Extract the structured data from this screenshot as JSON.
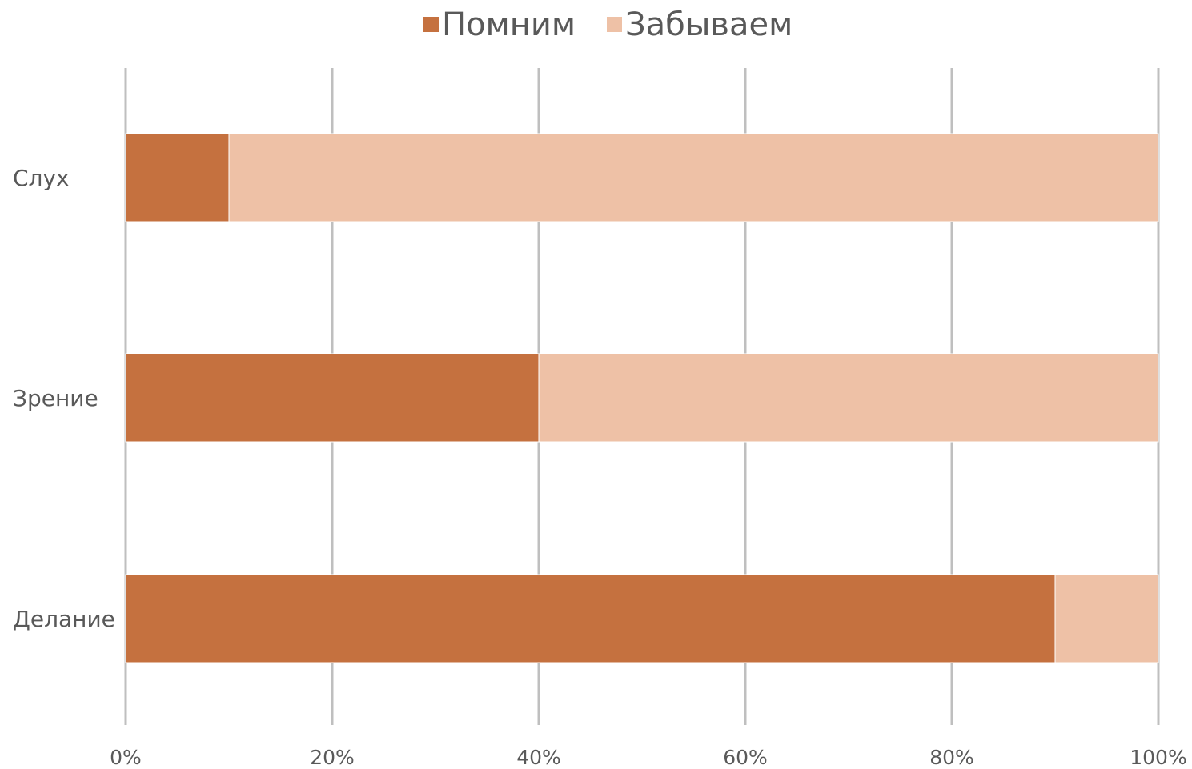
{
  "chart_data": {
    "type": "bar",
    "orientation": "horizontal",
    "stacked": "percent",
    "categories": [
      "Слух",
      "Зрение",
      "Делание"
    ],
    "series": [
      {
        "name": "Помним",
        "values": [
          10,
          40,
          90
        ],
        "color": "#c5713f"
      },
      {
        "name": "Забываем",
        "values": [
          90,
          60,
          10
        ],
        "color": "#eec1a6"
      }
    ],
    "x_ticks": [
      "0%",
      "20%",
      "40%",
      "60%",
      "80%",
      "100%"
    ],
    "xlim": [
      0,
      100
    ],
    "grid": true,
    "legend_position": "top-center",
    "title": "",
    "xlabel": "",
    "ylabel": ""
  }
}
